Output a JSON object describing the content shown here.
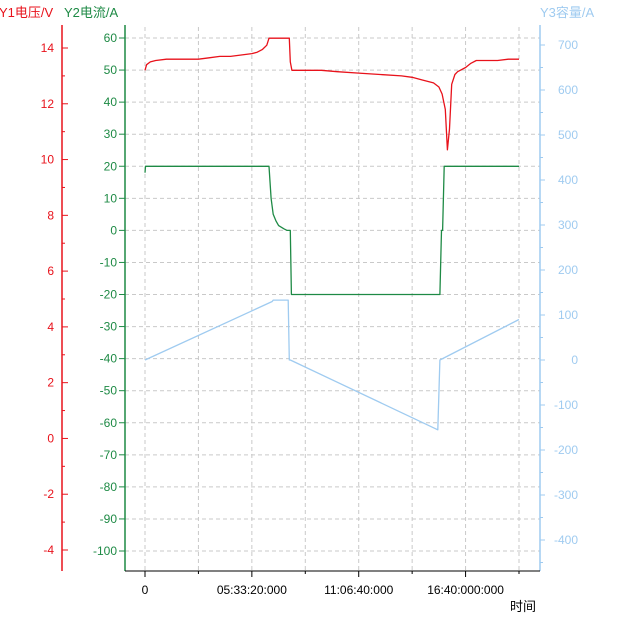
{
  "chart_data": {
    "type": "line",
    "axes": {
      "y1": {
        "label": "Y1电压/V",
        "color": "#e8121b",
        "range": [
          -5,
          15
        ],
        "ticks": [
          -4,
          -2,
          0,
          2,
          4,
          6,
          8,
          10,
          12,
          14
        ]
      },
      "y2": {
        "label": "Y2电流/A",
        "color": "#1e8a45",
        "range": [
          -105,
          65
        ],
        "ticks": [
          -100,
          -90,
          -80,
          -70,
          -60,
          -50,
          -40,
          -30,
          -20,
          -10,
          0,
          10,
          20,
          30,
          40,
          50,
          60
        ]
      },
      "y3": {
        "label": "Y3容量/A",
        "color": "#9fcbf0",
        "range": [
          -470,
          750
        ],
        "ticks": [
          -400,
          -300,
          -200,
          -100,
          0,
          100,
          200,
          300,
          400,
          500,
          600,
          700
        ]
      },
      "x": {
        "label": "时间",
        "range": [
          -1000,
          71000
        ],
        "ticks": [
          0,
          20000,
          40000,
          60000
        ],
        "tick_labels": [
          "0",
          "05:33:20:000",
          "11:06:40:000",
          "16:40:000:000"
        ]
      }
    },
    "grid": true,
    "series": [
      {
        "axis": "y1",
        "color": "#e8121b",
        "x": [
          0,
          300,
          1000,
          2000,
          4000,
          6000,
          8000,
          10000,
          12000,
          14000,
          16000,
          18000,
          20000,
          21000,
          22000,
          22800,
          23200,
          24000,
          25000,
          26000,
          27000,
          27200,
          27500,
          30000,
          33000,
          36000,
          40000,
          44000,
          48000,
          50000,
          52000,
          54000,
          55000,
          55600,
          56200,
          56600,
          57000,
          57400,
          58000,
          58500,
          59000,
          60000,
          61000,
          62000,
          64000,
          66000,
          68000,
          70000
        ],
        "y": [
          13.2,
          13.4,
          13.5,
          13.55,
          13.6,
          13.6,
          13.6,
          13.6,
          13.65,
          13.7,
          13.7,
          13.75,
          13.8,
          13.85,
          13.95,
          14.1,
          14.35,
          14.35,
          14.35,
          14.35,
          14.35,
          13.5,
          13.2,
          13.2,
          13.2,
          13.15,
          13.1,
          13.05,
          13.0,
          12.95,
          12.85,
          12.75,
          12.6,
          12.35,
          11.8,
          10.35,
          11.1,
          12.7,
          13.05,
          13.15,
          13.2,
          13.3,
          13.45,
          13.55,
          13.55,
          13.55,
          13.6,
          13.6
        ]
      },
      {
        "axis": "y2",
        "color": "#1e8a45",
        "x": [
          0,
          100,
          20000,
          23200,
          23600,
          24000,
          24500,
          25000,
          26000,
          26600,
          26900,
          27200,
          27400,
          55200,
          55500,
          55700,
          56000,
          70000
        ],
        "y": [
          18,
          20,
          20,
          20,
          10,
          5,
          3,
          1.5,
          0.5,
          0,
          0,
          0,
          -20,
          -20,
          0,
          0,
          20,
          20
        ]
      },
      {
        "axis": "y3",
        "color": "#9fcbf0",
        "x": [
          0,
          23800,
          24000,
          26800,
          27000,
          27200,
          54800,
          55200,
          70000
        ],
        "y": [
          0,
          130,
          133,
          133,
          0,
          0,
          -155,
          0,
          90
        ]
      }
    ]
  },
  "x_axis_title": "时间"
}
